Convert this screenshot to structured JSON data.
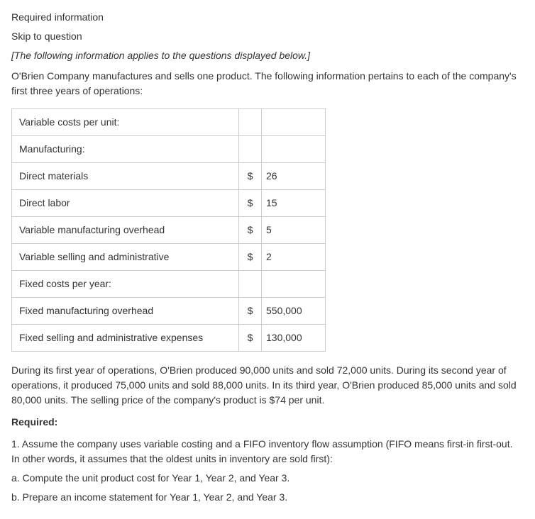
{
  "header": {
    "required_info": "Required information",
    "skip_link": "Skip to question",
    "note": "[The following information applies to the questions displayed below.]",
    "intro": "O'Brien Company manufactures and sells one product. The following information pertains to each of the company's first three years of operations:"
  },
  "table": {
    "rows": [
      {
        "label": "Variable costs per unit:",
        "currency": "",
        "value": ""
      },
      {
        "label": "Manufacturing:",
        "currency": "",
        "value": ""
      },
      {
        "label": "Direct materials",
        "currency": "$",
        "value": "26"
      },
      {
        "label": "Direct labor",
        "currency": "$",
        "value": "15"
      },
      {
        "label": "Variable manufacturing overhead",
        "currency": "$",
        "value": "5"
      },
      {
        "label": "Variable selling and administrative",
        "currency": "$",
        "value": "2"
      },
      {
        "label": "Fixed costs per year:",
        "currency": "",
        "value": ""
      },
      {
        "label": "Fixed manufacturing overhead",
        "currency": "$",
        "value": "550,000"
      },
      {
        "label": "Fixed selling and administrative expenses",
        "currency": "$",
        "value": "130,000"
      }
    ]
  },
  "body": {
    "paragraph": "During its first year of operations, O'Brien produced 90,000 units and sold 72,000 units. During its second year of operations, it produced 75,000 units and sold 88,000 units. In its third year, O'Brien produced 85,000 units and sold 80,000 units. The selling price of the company's product is $74 per unit.",
    "required_label": "Required:",
    "q1": "1. Assume the company uses variable costing and a FIFO inventory flow assumption (FIFO means first-in first-out. In other words, it assumes that the oldest units in inventory are sold first):",
    "q1a": "a. Compute the unit product cost for Year 1, Year 2, and Year 3.",
    "q1b": "b. Prepare an income statement for Year 1, Year 2, and Year 3."
  }
}
